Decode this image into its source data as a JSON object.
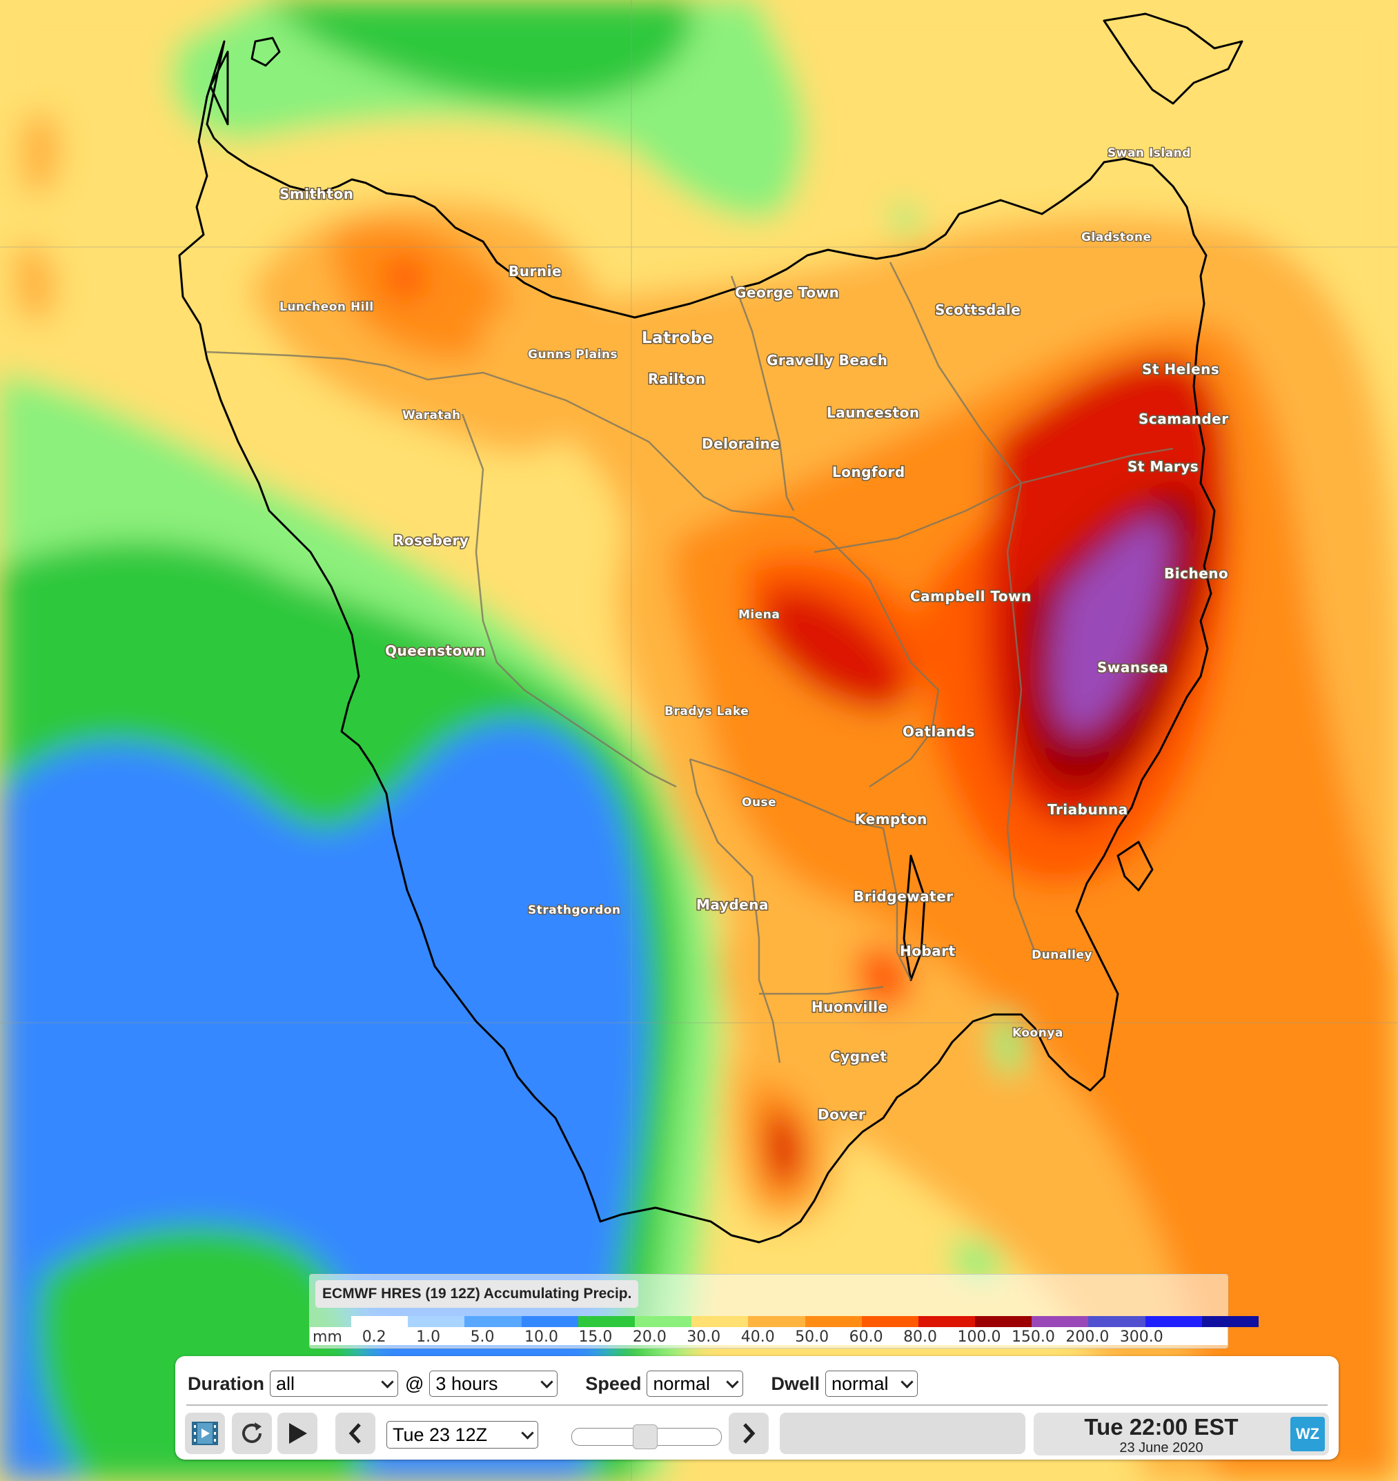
{
  "map": {
    "places": [
      {
        "name": "Smithton",
        "size": "med"
      },
      {
        "name": "Burnie",
        "size": "med"
      },
      {
        "name": "Luncheon Hill",
        "size": "small"
      },
      {
        "name": "Gunns Plains",
        "size": "small"
      },
      {
        "name": "Latrobe",
        "size": "large"
      },
      {
        "name": "Railton",
        "size": "med"
      },
      {
        "name": "George Town",
        "size": "med"
      },
      {
        "name": "Scottsdale",
        "size": "med"
      },
      {
        "name": "Gravelly Beach",
        "size": "med"
      },
      {
        "name": "Launceston",
        "size": "med"
      },
      {
        "name": "Deloraine",
        "size": "med"
      },
      {
        "name": "Longford",
        "size": "med"
      },
      {
        "name": "Waratah",
        "size": "small"
      },
      {
        "name": "Swan Island",
        "size": "small"
      },
      {
        "name": "Gladstone",
        "size": "small"
      },
      {
        "name": "St Helens",
        "size": "med"
      },
      {
        "name": "Scamander",
        "size": "med"
      },
      {
        "name": "St Marys",
        "size": "med"
      },
      {
        "name": "Rosebery",
        "size": "med"
      },
      {
        "name": "Campbell Town",
        "size": "med"
      },
      {
        "name": "Bicheno",
        "size": "med"
      },
      {
        "name": "Miena",
        "size": "small"
      },
      {
        "name": "Queenstown",
        "size": "med"
      },
      {
        "name": "Swansea",
        "size": "med"
      },
      {
        "name": "Bradys Lake",
        "size": "small"
      },
      {
        "name": "Oatlands",
        "size": "med"
      },
      {
        "name": "Ouse",
        "size": "small"
      },
      {
        "name": "Triabunna",
        "size": "med"
      },
      {
        "name": "Kempton",
        "size": "med"
      },
      {
        "name": "Strathgordon",
        "size": "small"
      },
      {
        "name": "Maydena",
        "size": "med"
      },
      {
        "name": "Bridgewater",
        "size": "med"
      },
      {
        "name": "Hobart",
        "size": "med"
      },
      {
        "name": "Dunalley",
        "size": "small"
      },
      {
        "name": "Huonville",
        "size": "med"
      },
      {
        "name": "Koonya",
        "size": "small"
      },
      {
        "name": "Cygnet",
        "size": "med"
      },
      {
        "name": "Dover",
        "size": "med"
      }
    ]
  },
  "legend": {
    "title": "ECMWF HRES (19 12Z) Accumulating Precip.",
    "unit": "mm",
    "values": [
      "0.2",
      "1.0",
      "5.0",
      "10.0",
      "15.0",
      "20.0",
      "30.0",
      "40.0",
      "50.0",
      "60.0",
      "80.0",
      "100.0",
      "150.0",
      "200.0",
      "300.0"
    ],
    "colors": [
      "#ffffff",
      "#a8d4ff",
      "#58a8ff",
      "#3488ff",
      "#2ec83c",
      "#8cf07c",
      "#ffe070",
      "#ffb440",
      "#ff8c14",
      "#ff5a00",
      "#dc1400",
      "#9c0000",
      "#9a48b8",
      "#5050d0",
      "#2020ff",
      "#1010a0"
    ]
  },
  "controls": {
    "duration_label": "Duration",
    "duration_value": "all",
    "at_symbol": "@",
    "interval_value": "3 hours",
    "speed_label": "Speed",
    "speed_value": "normal",
    "dwell_label": "Dwell",
    "dwell_value": "normal",
    "time_select_value": "Tue 23 12Z",
    "time_main": "Tue 22:00 EST",
    "time_sub": "23 June 2020",
    "logo_text": "WZ"
  },
  "icons": {
    "film": "film-icon",
    "refresh": "refresh-icon",
    "play": "play-icon",
    "prev": "chevron-left-icon",
    "next": "chevron-right-icon"
  }
}
